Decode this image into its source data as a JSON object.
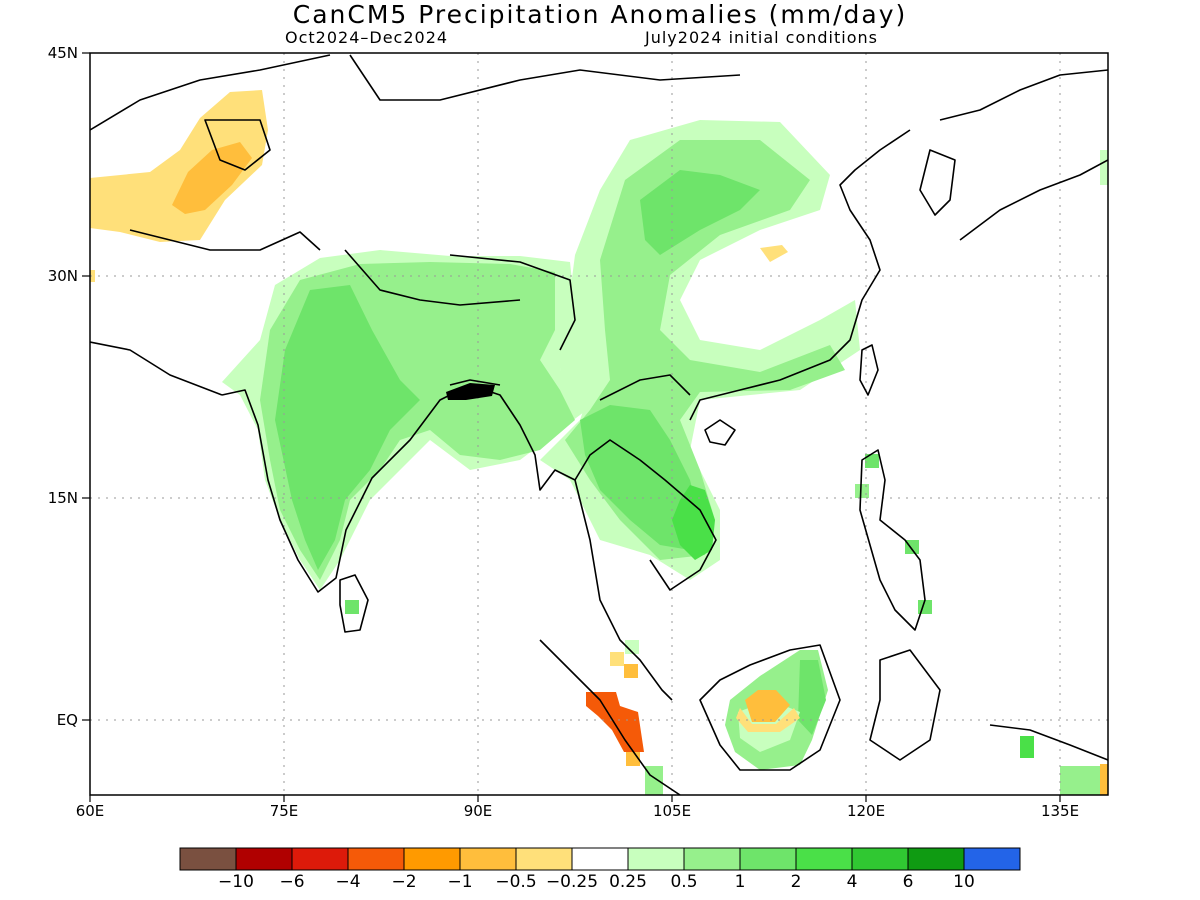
{
  "title": "CanCM5 Precipitation Anomalies (mm/day)",
  "subtitle_left": "Oct2024–Dec2024",
  "subtitle_right": "July2024 initial conditions",
  "lat_labels": [
    "45N",
    "30N",
    "15N",
    "EQ"
  ],
  "lon_labels": [
    "60E",
    "75E",
    "90E",
    "105E",
    "120E",
    "135E"
  ],
  "legend": {
    "labels": [
      "−10",
      "−6",
      "−4",
      "−2",
      "−1",
      "−0.5",
      "−0.25",
      "0.25",
      "0.5",
      "1",
      "2",
      "4",
      "6",
      "10"
    ],
    "colors": [
      "#7a5040",
      "#b00000",
      "#dd1a0a",
      "#f55a08",
      "#ff9a00",
      "#ffbe3c",
      "#ffe07a",
      "#ffffff",
      "#c8ffbe",
      "#96f08c",
      "#6ee46a",
      "#4ae048",
      "#30c832",
      "#0f9b12",
      "#2364e8"
    ]
  },
  "colors": {
    "dry_light": "#ffe07a",
    "dry_mid": "#ffbe3c",
    "dry_strong": "#f55a08",
    "wet_light": "#c8ffbe",
    "wet_mid": "#96f08c",
    "wet_strong": "#6ee46a",
    "wet_vstrong": "#4ae048"
  }
}
